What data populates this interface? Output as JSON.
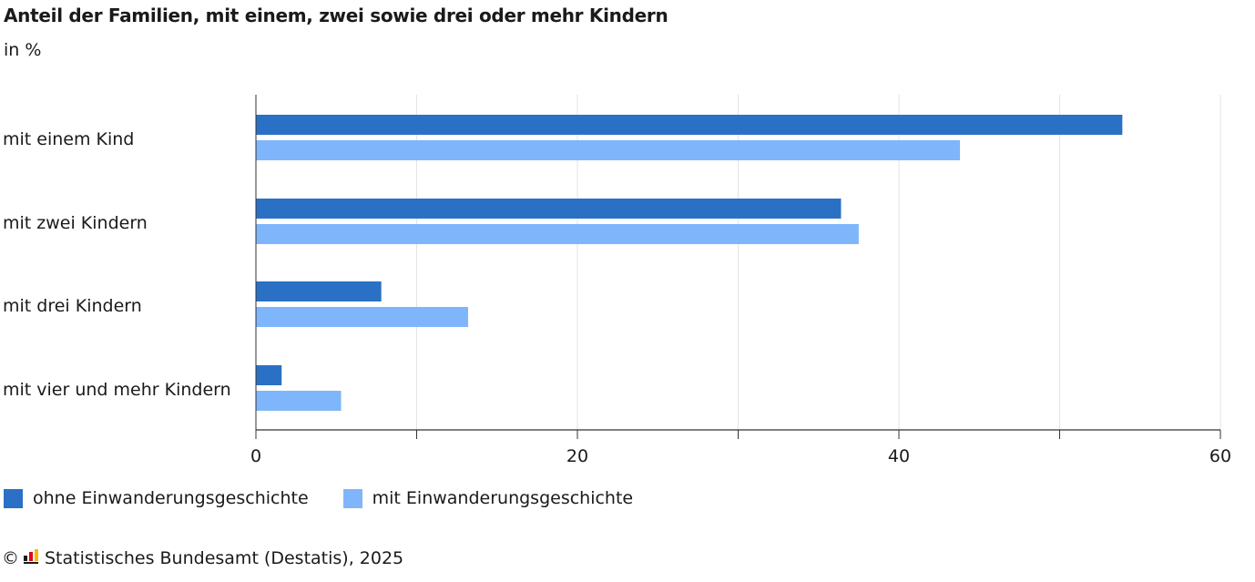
{
  "chart_data": {
    "type": "bar",
    "orientation": "horizontal",
    "title": "Anteil der Familien, mit einem, zwei sowie drei oder mehr Kindern",
    "subtitle": "in %",
    "categories": [
      "mit einem Kind",
      "mit zwei Kindern",
      "mit drei Kindern",
      "mit vier und mehr Kindern"
    ],
    "series": [
      {
        "name": "ohne Einwanderungsgeschichte",
        "color": "#2a70c5",
        "values": [
          53.9,
          36.4,
          7.8,
          1.6
        ]
      },
      {
        "name": "mit Einwanderungsgeschichte",
        "color": "#7fb6fb",
        "values": [
          43.8,
          37.5,
          13.2,
          5.3
        ]
      }
    ],
    "xlim": [
      0,
      60
    ],
    "xticks": [
      0,
      10,
      20,
      30,
      40,
      50,
      60
    ],
    "xtick_labels": [
      "0",
      "20",
      "40",
      "60"
    ],
    "grid": true,
    "legend_position": "bottom-left"
  },
  "source": {
    "copyright_symbol": "©",
    "text": "Statistisches Bundesamt (Destatis), 2025"
  }
}
